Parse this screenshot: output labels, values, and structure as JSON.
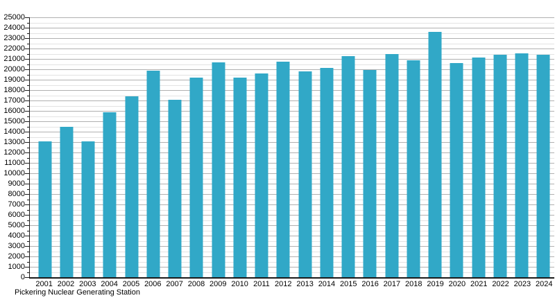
{
  "chart_data": {
    "type": "bar",
    "title": "",
    "caption": "Pickering Nuclear Generating Station",
    "xlabel": "",
    "ylabel": "",
    "categories": [
      "2001",
      "2002",
      "2003",
      "2004",
      "2005",
      "2006",
      "2007",
      "2008",
      "2009",
      "2010",
      "2011",
      "2012",
      "2013",
      "2014",
      "2015",
      "2016",
      "2017",
      "2018",
      "2019",
      "2020",
      "2021",
      "2022",
      "2023",
      "2024"
    ],
    "values": [
      13100,
      14500,
      13100,
      15850,
      17400,
      19900,
      17050,
      19200,
      20650,
      19200,
      19600,
      20750,
      19800,
      20150,
      21300,
      19950,
      21450,
      20850,
      23600,
      20600,
      21150,
      21400,
      21550,
      21400
    ],
    "ylim": [
      0,
      25000
    ],
    "ytick_step": 1000,
    "minor_tick_step": 500,
    "grid": "on",
    "legend": "none",
    "bar_color": "#31a8c7",
    "major_grid_color": "#b0b0b0",
    "minor_grid_color": "#e3e3e3",
    "axis_color": "#1a1a1a"
  }
}
